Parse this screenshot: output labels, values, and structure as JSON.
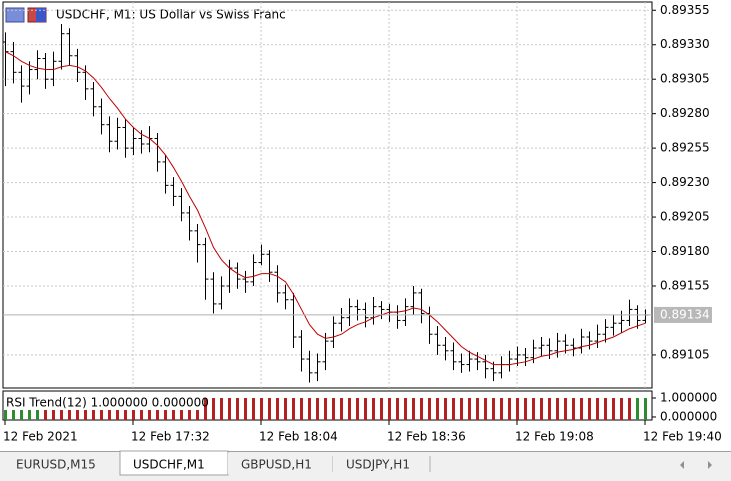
{
  "chart_data": [
    {
      "type": "ohlc",
      "title": "USDCHF, M1:  US Dollar vs Swiss Franc",
      "color": "#000000",
      "ma_color": "#c00000",
      "grid": true,
      "ylim": [
        0.89081,
        0.89361
      ],
      "yticks": [
        0.89105,
        0.89155,
        {
          "value": 0.8918,
          "label": "0.89180"
        },
        0.89205,
        {
          "value": 0.8923,
          "label": "0.89230"
        },
        0.89255,
        {
          "value": 0.8928,
          "label": "0.89280"
        },
        0.89305,
        {
          "value": 0.8933,
          "label": "0.89330"
        },
        0.89355
      ],
      "xticks": [
        {
          "value": 0,
          "label": "12 Feb 2021"
        },
        {
          "value": 16,
          "label": "12 Feb 17:32"
        },
        {
          "value": 32,
          "label": "12 Feb 18:04"
        },
        {
          "value": 48,
          "label": "12 Feb 18:36"
        },
        {
          "value": 64,
          "label": "12 Feb 19:08"
        },
        {
          "value": 80,
          "label": "12 Feb 19:40"
        }
      ],
      "last_price": 0.89134,
      "open": [
        0.89332,
        0.89325,
        0.8931,
        0.893,
        0.89312,
        0.8932,
        0.89305,
        0.89318,
        0.89338,
        0.89322,
        0.8931,
        0.89298,
        0.89285,
        0.89272,
        0.8926,
        0.8927,
        0.89255,
        0.89262,
        0.89258,
        0.89262,
        0.89245,
        0.89228,
        0.8922,
        0.89208,
        0.89195,
        0.89185,
        0.8916,
        0.89142,
        0.89155,
        0.89168,
        0.8916,
        0.89158,
        0.89172,
        0.89178,
        0.89165,
        0.8915,
        0.89145,
        0.89118,
        0.89102,
        0.89092,
        0.891,
        0.89115,
        0.89128,
        0.89132,
        0.8914,
        0.89138,
        0.89132,
        0.8914,
        0.89138,
        0.89136,
        0.8913,
        0.8914,
        0.8915,
        0.89135,
        0.8912,
        0.89112,
        0.89108,
        0.891,
        0.89098,
        0.89102,
        0.891,
        0.89095,
        0.89092,
        0.89098,
        0.89102,
        0.89105,
        0.89103,
        0.8911,
        0.89112,
        0.89108,
        0.89115,
        0.89112,
        0.8911,
        0.89118,
        0.89115,
        0.8912,
        0.89125,
        0.89128,
        0.8913,
        0.89138,
        0.8913
      ],
      "high": [
        0.89339,
        0.89332,
        0.89315,
        0.89318,
        0.89326,
        0.89324,
        0.89325,
        0.89345,
        0.89342,
        0.89327,
        0.89315,
        0.89303,
        0.89291,
        0.89278,
        0.89277,
        0.89276,
        0.8927,
        0.89268,
        0.89271,
        0.89266,
        0.8925,
        0.89234,
        0.89226,
        0.89213,
        0.892,
        0.8919,
        0.89165,
        0.89162,
        0.89174,
        0.89172,
        0.89166,
        0.89178,
        0.89185,
        0.89181,
        0.8917,
        0.89156,
        0.8915,
        0.89123,
        0.89108,
        0.89106,
        0.89121,
        0.89133,
        0.89139,
        0.89146,
        0.89145,
        0.89143,
        0.89147,
        0.89144,
        0.89142,
        0.89141,
        0.89146,
        0.89155,
        0.89153,
        0.8914,
        0.89126,
        0.89118,
        0.89114,
        0.89106,
        0.89108,
        0.89107,
        0.89105,
        0.891,
        0.89104,
        0.89108,
        0.89111,
        0.8911,
        0.89116,
        0.89118,
        0.89117,
        0.89121,
        0.8912,
        0.89117,
        0.89124,
        0.89122,
        0.89127,
        0.89131,
        0.89134,
        0.89137,
        0.89145,
        0.89141,
        0.89138
      ],
      "low": [
        0.893,
        0.89302,
        0.89288,
        0.89294,
        0.89305,
        0.89298,
        0.893,
        0.89312,
        0.89315,
        0.89303,
        0.8929,
        0.89278,
        0.89265,
        0.89252,
        0.89254,
        0.89248,
        0.8925,
        0.89251,
        0.89252,
        0.89238,
        0.89222,
        0.89213,
        0.89202,
        0.89188,
        0.89172,
        0.89145,
        0.89135,
        0.89138,
        0.8915,
        0.89153,
        0.8915,
        0.89155,
        0.8917,
        0.89158,
        0.89143,
        0.89138,
        0.8911,
        0.89093,
        0.89085,
        0.89086,
        0.89094,
        0.8911,
        0.89122,
        0.89126,
        0.8913,
        0.89125,
        0.89127,
        0.89131,
        0.89129,
        0.89124,
        0.89126,
        0.89134,
        0.89128,
        0.89113,
        0.89105,
        0.89101,
        0.89094,
        0.89092,
        0.89093,
        0.89094,
        0.89088,
        0.89086,
        0.89088,
        0.89093,
        0.89097,
        0.89097,
        0.89099,
        0.89104,
        0.89102,
        0.89103,
        0.89106,
        0.89104,
        0.89106,
        0.89109,
        0.8911,
        0.89114,
        0.89119,
        0.89121,
        0.89126,
        0.89124,
        0.89128
      ],
      "close": [
        0.89325,
        0.8931,
        0.893,
        0.89312,
        0.8932,
        0.89305,
        0.89318,
        0.89338,
        0.89322,
        0.8931,
        0.89298,
        0.89285,
        0.89272,
        0.8926,
        0.8927,
        0.89255,
        0.89262,
        0.89258,
        0.89262,
        0.89245,
        0.89228,
        0.8922,
        0.89208,
        0.89195,
        0.89185,
        0.8916,
        0.89142,
        0.89155,
        0.89168,
        0.8916,
        0.89158,
        0.89172,
        0.89178,
        0.89165,
        0.8915,
        0.89145,
        0.89118,
        0.89102,
        0.89092,
        0.891,
        0.89115,
        0.89128,
        0.89132,
        0.8914,
        0.89138,
        0.89132,
        0.8914,
        0.89138,
        0.89136,
        0.8913,
        0.8914,
        0.8915,
        0.89135,
        0.8912,
        0.89112,
        0.89108,
        0.891,
        0.89098,
        0.89102,
        0.891,
        0.89095,
        0.89092,
        0.89098,
        0.89102,
        0.89105,
        0.89103,
        0.8911,
        0.89112,
        0.89108,
        0.89115,
        0.89112,
        0.8911,
        0.89118,
        0.89115,
        0.8912,
        0.89125,
        0.89128,
        0.8913,
        0.89138,
        0.8913,
        0.89134
      ],
      "ma": [
        0.89325,
        0.89322,
        0.89318,
        0.89315,
        0.89313,
        0.89312,
        0.89312,
        0.89314,
        0.89315,
        0.89314,
        0.89311,
        0.89306,
        0.89299,
        0.89291,
        0.89284,
        0.89276,
        0.8927,
        0.89265,
        0.89262,
        0.89257,
        0.8925,
        0.89241,
        0.89231,
        0.8922,
        0.8921,
        0.89197,
        0.89183,
        0.89174,
        0.89168,
        0.89164,
        0.89161,
        0.89162,
        0.89164,
        0.89164,
        0.89162,
        0.89158,
        0.89149,
        0.89138,
        0.89127,
        0.8912,
        0.89117,
        0.89118,
        0.8912,
        0.89124,
        0.89127,
        0.89129,
        0.89132,
        0.89134,
        0.89136,
        0.89136,
        0.89137,
        0.89139,
        0.89138,
        0.89134,
        0.89129,
        0.89123,
        0.89117,
        0.89111,
        0.89107,
        0.89104,
        0.89101,
        0.89098,
        0.89098,
        0.89098,
        0.89099,
        0.891,
        0.89102,
        0.89104,
        0.89105,
        0.89107,
        0.89108,
        0.89109,
        0.89111,
        0.89112,
        0.89114,
        0.89116,
        0.89118,
        0.89121,
        0.89124,
        0.89126,
        0.89128
      ]
    },
    {
      "type": "trend-histogram",
      "label": "RSI Trend(12) 1.000000 0.000000",
      "ylim": [
        -0.16,
        1.37
      ],
      "yticks": [
        {
          "value": 1,
          "label": "1.000000"
        },
        {
          "value": 0,
          "label": "0.000000"
        }
      ],
      "series": [
        {
          "color": "#2e8b2e",
          "values": [
            1,
            1,
            1,
            1,
            1,
            null,
            null,
            null,
            null,
            null,
            null,
            null,
            null,
            null,
            null,
            null,
            null,
            null,
            null,
            null,
            null,
            null,
            null,
            null,
            null,
            null,
            null,
            null,
            null,
            null,
            null,
            null,
            null,
            null,
            null,
            null,
            null,
            null,
            null,
            null,
            null,
            null,
            null,
            null,
            null,
            null,
            null,
            null,
            null,
            null,
            null,
            null,
            null,
            null,
            null,
            null,
            null,
            null,
            null,
            null,
            null,
            null,
            null,
            null,
            null,
            null,
            null,
            null,
            null,
            null,
            null,
            null,
            null,
            null,
            null,
            null,
            null,
            null,
            null,
            1,
            1
          ]
        },
        {
          "color": "#b22222",
          "values": [
            null,
            null,
            null,
            null,
            null,
            1,
            1,
            1,
            1,
            1,
            1,
            1,
            1,
            1,
            1,
            1,
            1,
            1,
            1,
            1,
            1,
            1,
            1,
            1,
            1,
            1,
            1,
            1,
            1,
            1,
            1,
            1,
            1,
            1,
            1,
            1,
            1,
            1,
            1,
            1,
            1,
            1,
            1,
            1,
            1,
            1,
            1,
            1,
            1,
            1,
            1,
            1,
            1,
            1,
            1,
            1,
            1,
            1,
            1,
            1,
            1,
            1,
            1,
            1,
            1,
            1,
            1,
            1,
            1,
            1,
            1,
            1,
            1,
            1,
            1,
            1,
            1,
            1,
            1,
            null,
            null
          ]
        }
      ]
    }
  ],
  "tabs": [
    "EURUSD,M15",
    "USDCHF,M1",
    "GBPUSD,H1",
    "USDJPY,H1"
  ],
  "active_tab": 1
}
